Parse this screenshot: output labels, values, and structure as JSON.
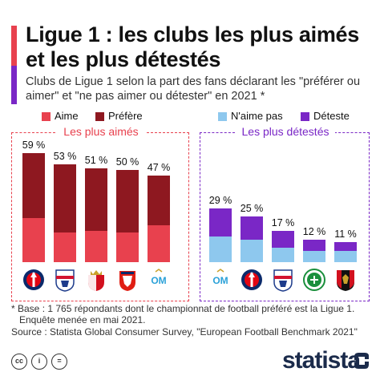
{
  "header": {
    "title": "Ligue 1 : les clubs les plus aimés et les plus détestés",
    "subtitle": "Clubs de Ligue 1 selon la part des fans déclarant les \"préférer ou aimer\" et \"ne pas aimer ou détester\" en 2021 *"
  },
  "colors": {
    "aime": "#e8414e",
    "prefere": "#8e1820",
    "naime_pas": "#8ec8ee",
    "deteste": "#7a27c6",
    "accent_red": "#e8414e",
    "accent_purple": "#7a27c6",
    "brand": "#1b2b4b"
  },
  "chart_data": [
    {
      "type": "bar",
      "stacked": true,
      "title": "Les plus aimés",
      "categories": [
        "PSG",
        "Olympique Lyonnais",
        "AS Monaco",
        "LOSC",
        "Olympique de Marseille"
      ],
      "category_icons": [
        "psg-logo",
        "ol-logo",
        "monaco-logo",
        "losc-logo",
        "om-logo"
      ],
      "series": [
        {
          "name": "Aime",
          "values": [
            24,
            16,
            17,
            16,
            20
          ]
        },
        {
          "name": "Préfère",
          "values": [
            35,
            37,
            34,
            34,
            27
          ]
        }
      ],
      "totals": [
        59,
        53,
        51,
        50,
        47
      ],
      "data_labels": [
        "59 %",
        "53 %",
        "51 %",
        "50 %",
        "47 %"
      ],
      "ylim": [
        0,
        60
      ],
      "legend": [
        "Aime",
        "Préfère"
      ],
      "legend_position": "top"
    },
    {
      "type": "bar",
      "stacked": true,
      "title": "Les plus détestés",
      "categories": [
        "Olympique de Marseille",
        "PSG",
        "Olympique Lyonnais",
        "AS Saint-Étienne",
        "OGC Nice"
      ],
      "category_icons": [
        "om-logo",
        "psg-logo",
        "ol-logo",
        "asse-logo",
        "nice-logo"
      ],
      "series": [
        {
          "name": "N'aime pas",
          "values": [
            14,
            12,
            8,
            6,
            6
          ]
        },
        {
          "name": "Déteste",
          "values": [
            15,
            13,
            9,
            6,
            5
          ]
        }
      ],
      "totals": [
        29,
        25,
        17,
        12,
        11
      ],
      "data_labels": [
        "29 %",
        "25 %",
        "17 %",
        "12 %",
        "11 %"
      ],
      "ylim": [
        0,
        60
      ],
      "legend": [
        "N'aime pas",
        "Déteste"
      ],
      "legend_position": "top"
    }
  ],
  "footnote": {
    "line1": "* Base : 1 765 répondants dont le championnat de football préféré est la Ligue 1.",
    "line2": "Enquête menée en mai 2021.",
    "source": "Source : Statista Global Consumer Survey, \"European Football Benchmark 2021\""
  },
  "footer": {
    "cc_labels": [
      "cc",
      "i",
      "="
    ],
    "brand": "statista"
  }
}
